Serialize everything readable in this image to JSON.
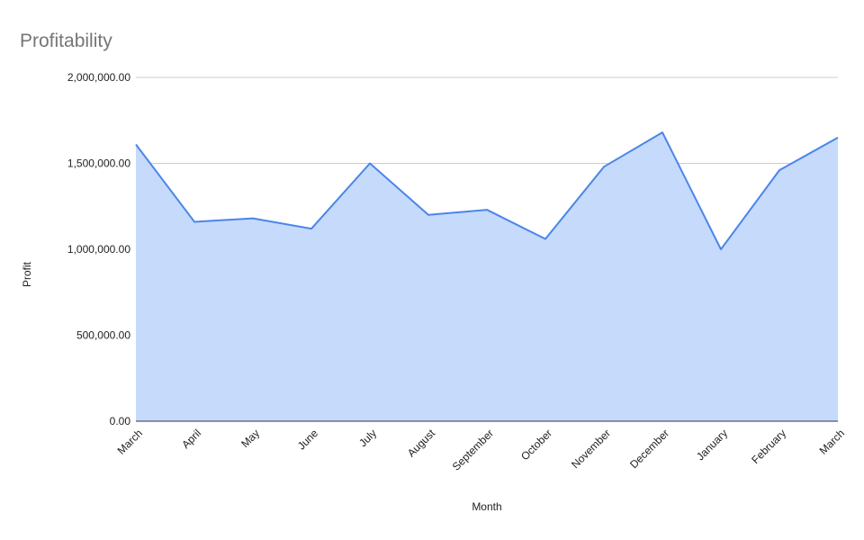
{
  "chart_data": {
    "type": "area",
    "title": "Profitability",
    "x_label": "Month",
    "y_label": "Profit",
    "categories": [
      "March",
      "April",
      "May",
      "June",
      "July",
      "August",
      "September",
      "October",
      "November",
      "December",
      "January",
      "February",
      "March"
    ],
    "values": [
      1610000,
      1160000,
      1180000,
      1120000,
      1500000,
      1200000,
      1230000,
      1060000,
      1480000,
      1680000,
      1000000,
      1460000,
      1650000
    ],
    "color": "#4a86e8",
    "fill_color": "#c6dafc",
    "ylim": [
      0,
      2000000
    ],
    "yticks": [
      {
        "value": 0,
        "label": "0.00"
      },
      {
        "value": 500000,
        "label": "500,000.00"
      },
      {
        "value": 1000000,
        "label": "1,000,000.00"
      },
      {
        "value": 1500000,
        "label": "1,500,000.00"
      },
      {
        "value": 2000000,
        "label": "2,000,000.00"
      }
    ],
    "grid": true
  }
}
